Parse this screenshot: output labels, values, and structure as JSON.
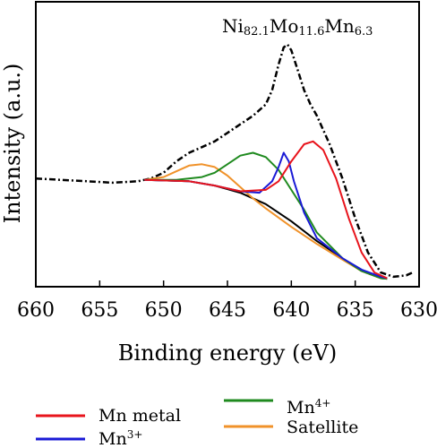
{
  "chart_data": {
    "type": "line",
    "title": "",
    "xlabel": "Binding energy (eV)",
    "ylabel": "Intensity (a.u.)",
    "xlim": [
      660,
      630
    ],
    "x_reversed": true,
    "ylim": [
      0,
      1
    ],
    "y_ticks_shown": false,
    "x_ticks": [
      660,
      655,
      650,
      645,
      640,
      635,
      630
    ],
    "annotation": {
      "text_parts": [
        {
          "text": "Ni",
          "sub": false
        },
        {
          "text": "82.1",
          "sub": true
        },
        {
          "text": "Mo",
          "sub": false
        },
        {
          "text": "11.6",
          "sub": true
        },
        {
          "text": "Mn",
          "sub": false
        },
        {
          "text": "6.3",
          "sub": true
        }
      ],
      "position": "top-right"
    },
    "legend": {
      "placement": "bottom",
      "entries": [
        {
          "label": "Mn metal",
          "sup": "",
          "color": "#e8141c"
        },
        {
          "label": "Mn",
          "sup": "3+",
          "color": "#1a1ad6"
        },
        {
          "label": "Mn",
          "sup": "4+",
          "color": "#1f8a1f"
        },
        {
          "label": "Satellite",
          "sup": "",
          "color": "#f0922a"
        }
      ]
    },
    "series": [
      {
        "key": "raw",
        "style": "dashdot",
        "color": "#000000",
        "points": [
          [
            660,
            0.38
          ],
          [
            658,
            0.375
          ],
          [
            656,
            0.37
          ],
          [
            654,
            0.365
          ],
          [
            652,
            0.37
          ],
          [
            651,
            0.38
          ],
          [
            650,
            0.4
          ],
          [
            649,
            0.44
          ],
          [
            648,
            0.47
          ],
          [
            647,
            0.49
          ],
          [
            646,
            0.51
          ],
          [
            645,
            0.54
          ],
          [
            644,
            0.57
          ],
          [
            643,
            0.6
          ],
          [
            642,
            0.64
          ],
          [
            641.5,
            0.69
          ],
          [
            641,
            0.78
          ],
          [
            640.6,
            0.84
          ],
          [
            640.3,
            0.85
          ],
          [
            640,
            0.83
          ],
          [
            639.5,
            0.76
          ],
          [
            639,
            0.69
          ],
          [
            638.5,
            0.64
          ],
          [
            638,
            0.6
          ],
          [
            637,
            0.5
          ],
          [
            636,
            0.38
          ],
          [
            635,
            0.24
          ],
          [
            634,
            0.12
          ],
          [
            633,
            0.05
          ],
          [
            632,
            0.035
          ],
          [
            631,
            0.04
          ],
          [
            630.5,
            0.05
          ]
        ]
      },
      {
        "key": "background",
        "style": "solid",
        "color": "#000000",
        "points": [
          [
            651.5,
            0.375
          ],
          [
            648,
            0.37
          ],
          [
            646,
            0.355
          ],
          [
            644,
            0.33
          ],
          [
            642,
            0.29
          ],
          [
            640,
            0.23
          ],
          [
            638,
            0.16
          ],
          [
            636,
            0.1
          ],
          [
            634.5,
            0.055
          ],
          [
            633,
            0.03
          ],
          [
            632.5,
            0.028
          ]
        ]
      },
      {
        "key": "Satellite",
        "style": "solid",
        "color": "#f0922a",
        "points": [
          [
            651.5,
            0.375
          ],
          [
            650,
            0.385
          ],
          [
            649,
            0.405
          ],
          [
            648,
            0.425
          ],
          [
            647,
            0.43
          ],
          [
            646,
            0.42
          ],
          [
            645,
            0.39
          ],
          [
            644,
            0.35
          ],
          [
            643,
            0.31
          ],
          [
            642,
            0.275
          ],
          [
            640,
            0.21
          ],
          [
            638,
            0.15
          ],
          [
            636,
            0.095
          ],
          [
            634.5,
            0.055
          ],
          [
            633,
            0.03
          ],
          [
            632.5,
            0.028
          ]
        ]
      },
      {
        "key": "Mn4+",
        "style": "solid",
        "color": "#1f8a1f",
        "points": [
          [
            651.5,
            0.375
          ],
          [
            649,
            0.375
          ],
          [
            647,
            0.385
          ],
          [
            646,
            0.4
          ],
          [
            645,
            0.43
          ],
          [
            644,
            0.46
          ],
          [
            643,
            0.47
          ],
          [
            642,
            0.455
          ],
          [
            641,
            0.41
          ],
          [
            640,
            0.34
          ],
          [
            639,
            0.27
          ],
          [
            638,
            0.19
          ],
          [
            636,
            0.1
          ],
          [
            634.5,
            0.055
          ],
          [
            633,
            0.03
          ],
          [
            632.5,
            0.028
          ]
        ]
      },
      {
        "key": "Mn3+",
        "style": "solid",
        "color": "#1a1ad6",
        "points": [
          [
            651.5,
            0.375
          ],
          [
            648,
            0.37
          ],
          [
            646,
            0.355
          ],
          [
            644,
            0.335
          ],
          [
            642.5,
            0.33
          ],
          [
            641.5,
            0.37
          ],
          [
            641,
            0.42
          ],
          [
            640.6,
            0.47
          ],
          [
            640.2,
            0.44
          ],
          [
            639.8,
            0.37
          ],
          [
            639,
            0.26
          ],
          [
            638,
            0.17
          ],
          [
            636,
            0.1
          ],
          [
            634.5,
            0.06
          ],
          [
            633,
            0.035
          ],
          [
            632.5,
            0.03
          ]
        ]
      },
      {
        "key": "Mn metal",
        "style": "solid",
        "color": "#e8141c",
        "points": [
          [
            651.5,
            0.375
          ],
          [
            648,
            0.37
          ],
          [
            646,
            0.355
          ],
          [
            644,
            0.335
          ],
          [
            642,
            0.34
          ],
          [
            641,
            0.37
          ],
          [
            640,
            0.44
          ],
          [
            639,
            0.5
          ],
          [
            638.3,
            0.51
          ],
          [
            637.5,
            0.48
          ],
          [
            636.5,
            0.38
          ],
          [
            635.5,
            0.24
          ],
          [
            634.5,
            0.12
          ],
          [
            633.5,
            0.05
          ],
          [
            632.5,
            0.03
          ]
        ]
      }
    ]
  }
}
